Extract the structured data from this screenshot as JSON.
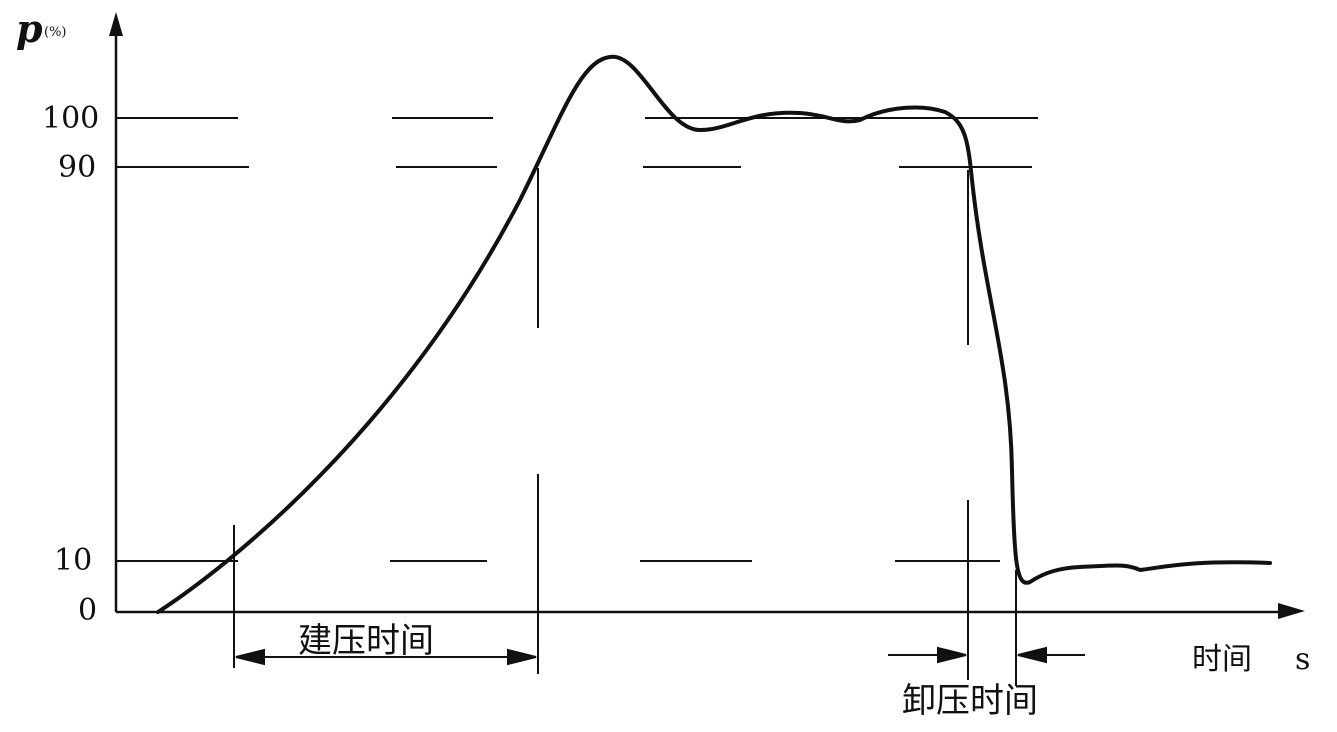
{
  "diagram": {
    "y_axis": {
      "symbol": "p",
      "unit": "(%)"
    },
    "x_axis": {
      "label": "时间",
      "unit": "s"
    },
    "y_ticks": [
      "100",
      "90",
      "10",
      "0"
    ],
    "annotations": {
      "build_up_time": "建压时间",
      "release_time": "卸压时间"
    },
    "colors": {
      "ink": "#111111",
      "background": "#ffffff"
    }
  }
}
